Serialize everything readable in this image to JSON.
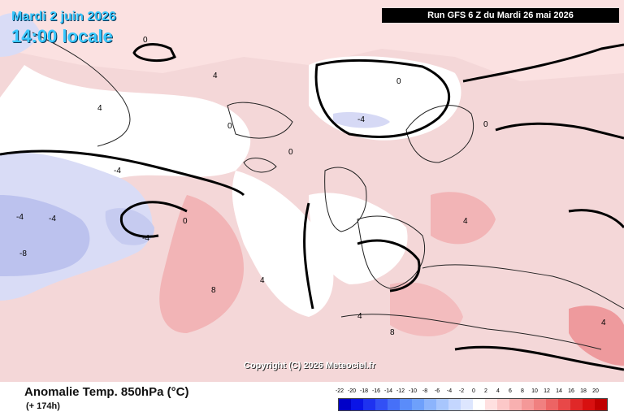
{
  "header": {
    "date_label": "Mardi 2 juin 2026",
    "time_label": "14:00 locale",
    "run_label": "Run GFS 6 Z du Mardi 26 mai 2026"
  },
  "map": {
    "copyright": "Copyright (C) 2026 Meteociel.fr",
    "contour_labels": [
      "0",
      "4",
      "8",
      "-4",
      "-8",
      "4",
      "0",
      "-4",
      "4",
      "8",
      "0",
      "-4",
      "4",
      "-4",
      "0",
      "4",
      "-4",
      "0",
      "0",
      "4"
    ]
  },
  "footer": {
    "title": "Anomalie Temp. 850hPa (°C)",
    "lead": "(+ 174h)"
  },
  "legend": {
    "ticks": [
      "-22",
      "-20",
      "-18",
      "-16",
      "-14",
      "-12",
      "-10",
      "-8",
      "-6",
      "-4",
      "-2",
      "0",
      "2",
      "4",
      "6",
      "8",
      "10",
      "12",
      "14",
      "16",
      "18",
      "20"
    ],
    "colors": [
      "#0000c8",
      "#0a14e6",
      "#1e32f0",
      "#3250f5",
      "#4670f8",
      "#5a8cfa",
      "#6ea0fb",
      "#8cb4fc",
      "#a8c6fd",
      "#c4d6fe",
      "#dde6fe",
      "#ffffff",
      "#ffe0e0",
      "#fcc8c8",
      "#f8b0b0",
      "#f49898",
      "#f08080",
      "#ec6464",
      "#e84848",
      "#e02828",
      "#d81010",
      "#c00000"
    ]
  }
}
